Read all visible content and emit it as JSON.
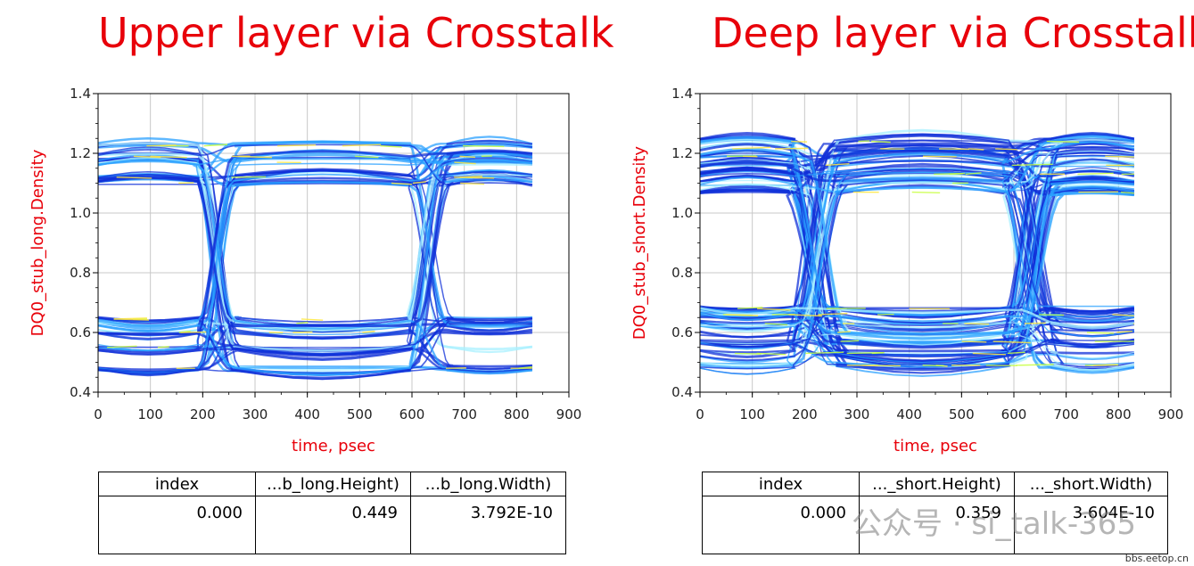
{
  "chart_data": [
    {
      "type": "eye-diagram",
      "title": "Upper layer via Crosstalk",
      "xlabel": "time, psec",
      "ylabel": "DQ0_stub_long.Density",
      "xlim": [
        0,
        900
      ],
      "ylim": [
        0.4,
        1.4
      ],
      "xticks": [
        0,
        100,
        200,
        300,
        400,
        500,
        600,
        700,
        800,
        900
      ],
      "yticks": [
        0.4,
        0.6,
        0.8,
        1.0,
        1.2,
        1.4
      ],
      "ytick_labels": [
        "0.4",
        "0.6",
        "0.8",
        "1.0",
        "1.2",
        "1.4"
      ],
      "grid": true,
      "data_span": [
        0,
        830
      ],
      "levels": {
        "high": [
          1.225,
          1.19,
          1.17,
          1.12,
          1.1
        ],
        "low": [
          0.645,
          0.63,
          0.6,
          0.55,
          0.48
        ]
      },
      "crossings": [
        [
          212,
          240
        ],
        [
          617,
          645
        ]
      ],
      "table": {
        "headers": [
          "index",
          "...b_long.Height)",
          "...b_long.Width)"
        ],
        "values": [
          "0.000",
          "0.449",
          "3.792E-10"
        ]
      }
    },
    {
      "type": "eye-diagram",
      "title": "Deep layer via Crosstalk",
      "xlabel": "time, psec",
      "ylabel": "DQ0_stub_short.Density",
      "xlim": [
        0,
        900
      ],
      "ylim": [
        0.4,
        1.4
      ],
      "xticks": [
        0,
        100,
        200,
        300,
        400,
        500,
        600,
        700,
        800,
        900
      ],
      "yticks": [
        0.4,
        0.6,
        0.8,
        1.0,
        1.2,
        1.4
      ],
      "ytick_labels": [
        "0.4",
        "0.6",
        "0.8",
        "1.0",
        "1.2",
        "1.4"
      ],
      "grid": true,
      "data_span": [
        0,
        830
      ],
      "levels": {
        "high": [
          1.24,
          1.215,
          1.19,
          1.16,
          1.13,
          1.1,
          1.07
        ],
        "low": [
          0.68,
          0.66,
          0.63,
          0.6,
          0.57,
          0.53,
          0.49
        ]
      },
      "crossings": [
        [
          195,
          245
        ],
        [
          605,
          655
        ]
      ],
      "table": {
        "headers": [
          "index",
          "..._short.Height)",
          "..._short.Width)"
        ],
        "values": [
          "0.000",
          "0.359",
          "3.604E-10"
        ]
      }
    }
  ],
  "watermark": "公众号 · si_talk-365",
  "site": "bbs.eetop.cn",
  "colors": {
    "title": "#e8000a",
    "label": "#e8000a",
    "trace_dark": "#1030d8",
    "trace_mid": "#2aa0ff",
    "trace_light": "#a8f0ff",
    "hot": "#c8ff40"
  }
}
